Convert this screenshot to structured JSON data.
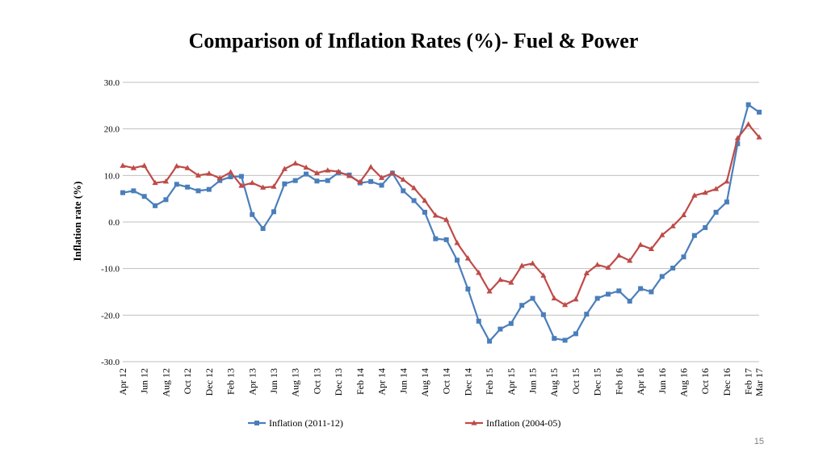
{
  "slide": {
    "number": "15"
  },
  "colors": {
    "series1": "#4a7ebb",
    "series2": "#be4b48",
    "grid": "#bfbfbf",
    "axis": "#868686"
  },
  "chart_data": {
    "type": "line",
    "title": "Comparison of Inflation Rates (%)- Fuel & Power",
    "xlabel": "",
    "ylabel": "Inflation rate (%)",
    "ylim": [
      -30,
      30
    ],
    "yticks": [
      30,
      20,
      10,
      0,
      -10,
      -20,
      -30
    ],
    "ytick_labels": [
      "30.0",
      "20.0",
      "10.0",
      "0.0",
      "-10.0",
      "-20.0",
      "-30.0"
    ],
    "grid": true,
    "legend": "bottom",
    "x": [
      "Apr 12",
      "May 12",
      "Jun 12",
      "Jul 12",
      "Aug 12",
      "Sep 12",
      "Oct 12",
      "Nov 12",
      "Dec 12",
      "Jan 13",
      "Feb 13",
      "Mar 13",
      "Apr 13",
      "May 13",
      "Jun 13",
      "Jul 13",
      "Aug 13",
      "Sep 13",
      "Oct 13",
      "Nov 13",
      "Dec 13",
      "Jan 14",
      "Feb 14",
      "Mar 14",
      "Apr 14",
      "May 14",
      "Jun 14",
      "Jul 14",
      "Aug 14",
      "Sep 14",
      "Oct 14",
      "Nov 14",
      "Dec 14",
      "Jan 15",
      "Feb 15",
      "Mar 15",
      "Apr 15",
      "May 15",
      "Jun 15",
      "Jul 15",
      "Aug 15",
      "Sep 15",
      "Oct 15",
      "Nov 15",
      "Dec 15",
      "Jan 16",
      "Feb 16",
      "Mar 16",
      "Apr 16",
      "May 16",
      "Jun 16",
      "Jul 16",
      "Aug 16",
      "Sep 16",
      "Oct 16",
      "Nov 16",
      "Dec 16",
      "Jan 17",
      "Feb 17",
      "Mar 17"
    ],
    "tick_labels": [
      "Apr 12",
      "Jun 12",
      "Aug 12",
      "Oct 12",
      "Dec 12",
      "Feb 13",
      "Apr 13",
      "Jun 13",
      "Aug 13",
      "Oct 13",
      "Dec 13",
      "Feb 14",
      "Apr 14",
      "Jun 14",
      "Aug 14",
      "Oct 14",
      "Dec 14",
      "Feb 15",
      "Apr 15",
      "Jun 15",
      "Aug 15",
      "Oct 15",
      "Dec 15",
      "Feb 16",
      "Apr 16",
      "Jun 16",
      "Aug 16",
      "Oct 16",
      "Dec 16",
      "Feb 17",
      "Mar 17"
    ],
    "series": [
      {
        "name": "Inflation (2011-12)",
        "marker": "square",
        "values": [
          6.3,
          6.7,
          5.5,
          3.5,
          4.8,
          8.1,
          7.5,
          6.7,
          7.0,
          8.9,
          9.7,
          9.8,
          1.6,
          -1.4,
          2.2,
          8.2,
          8.9,
          10.3,
          8.8,
          8.9,
          10.6,
          10.1,
          8.4,
          8.7,
          7.9,
          10.5,
          6.7,
          4.6,
          2.1,
          -3.6,
          -3.8,
          -8.2,
          -14.4,
          -21.3,
          -25.6,
          -23.0,
          -21.8,
          -17.9,
          -16.4,
          -19.9,
          -25.0,
          -25.4,
          -24.0,
          -19.8,
          -16.4,
          -15.5,
          -14.8,
          -17.0,
          -14.3,
          -15.0,
          -11.7,
          -9.9,
          -7.5,
          -2.9,
          -1.2,
          2.1,
          4.3,
          16.8,
          25.2,
          23.6
        ]
      },
      {
        "name": "Inflation (2004-05)",
        "marker": "triangle",
        "values": [
          12.1,
          11.6,
          12.1,
          8.4,
          8.7,
          12.0,
          11.6,
          10.0,
          10.4,
          9.4,
          10.7,
          7.8,
          8.4,
          7.4,
          7.6,
          11.4,
          12.6,
          11.7,
          10.5,
          11.1,
          10.8,
          9.9,
          8.6,
          11.8,
          9.5,
          10.5,
          9.1,
          7.3,
          4.6,
          1.4,
          0.5,
          -4.5,
          -7.8,
          -10.9,
          -14.9,
          -12.4,
          -13.0,
          -9.4,
          -8.9,
          -11.5,
          -16.4,
          -17.8,
          -16.6,
          -11.0,
          -9.2,
          -9.8,
          -7.2,
          -8.3,
          -4.9,
          -5.8,
          -2.8,
          -0.9,
          1.5,
          5.7,
          6.3,
          7.1,
          8.7,
          18.0,
          21.0,
          18.2
        ]
      }
    ]
  }
}
